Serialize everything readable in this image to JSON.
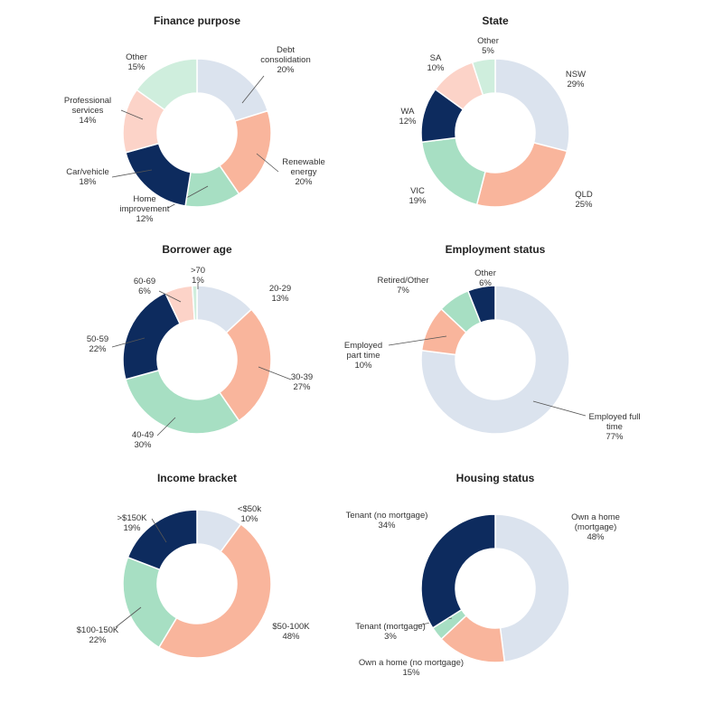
{
  "colors": {
    "light_blue": "#dbe3ee",
    "peach": "#f9b59c",
    "mint": "#a7dfc3",
    "navy": "#0d2b5e",
    "light_peach": "#fcd3c8",
    "light_mint": "#cfeedd"
  },
  "chart_data": [
    {
      "type": "pie",
      "title": "Finance purpose",
      "slices": [
        {
          "name": "Debt consolidation",
          "label_lines": [
            "Debt",
            "consolidation",
            "20%"
          ],
          "value": 20,
          "color": "#dbe3ee"
        },
        {
          "name": "Renewable energy",
          "label_lines": [
            "Renewable",
            "energy",
            "20%"
          ],
          "value": 20,
          "color": "#f9b59c"
        },
        {
          "name": "Home improvement",
          "label_lines": [
            "Home",
            "improvement",
            "12%"
          ],
          "value": 12,
          "color": "#a7dfc3"
        },
        {
          "name": "Car/vehicle",
          "label_lines": [
            "Car/vehicle",
            "18%"
          ],
          "value": 18,
          "color": "#0d2b5e"
        },
        {
          "name": "Professional services",
          "label_lines": [
            "Professional",
            "services",
            "14%"
          ],
          "value": 14,
          "color": "#fcd3c8"
        },
        {
          "name": "Other",
          "label_lines": [
            "Other",
            "15%"
          ],
          "value": 15,
          "color": "#cfeedd"
        }
      ]
    },
    {
      "type": "pie",
      "title": "State",
      "slices": [
        {
          "name": "NSW",
          "label_lines": [
            "NSW",
            "29%"
          ],
          "value": 29,
          "color": "#dbe3ee"
        },
        {
          "name": "QLD",
          "label_lines": [
            "QLD",
            "25%"
          ],
          "value": 25,
          "color": "#f9b59c"
        },
        {
          "name": "VIC",
          "label_lines": [
            "VIC",
            "19%"
          ],
          "value": 19,
          "color": "#a7dfc3"
        },
        {
          "name": "WA",
          "label_lines": [
            "WA",
            "12%"
          ],
          "value": 12,
          "color": "#0d2b5e"
        },
        {
          "name": "SA",
          "label_lines": [
            "SA",
            "10%"
          ],
          "value": 10,
          "color": "#fcd3c8"
        },
        {
          "name": "Other",
          "label_lines": [
            "Other",
            "5%"
          ],
          "value": 5,
          "color": "#cfeedd"
        }
      ]
    },
    {
      "type": "pie",
      "title": "Borrower age",
      "slices": [
        {
          "name": "20-29",
          "label_lines": [
            "20-29",
            "13%"
          ],
          "value": 13,
          "color": "#dbe3ee"
        },
        {
          "name": "30-39",
          "label_lines": [
            "30-39",
            "27%"
          ],
          "value": 27,
          "color": "#f9b59c"
        },
        {
          "name": "40-49",
          "label_lines": [
            "40-49",
            "30%"
          ],
          "value": 30,
          "color": "#a7dfc3"
        },
        {
          "name": "50-59",
          "label_lines": [
            "50-59",
            "22%"
          ],
          "value": 22,
          "color": "#0d2b5e"
        },
        {
          "name": "60-69",
          "label_lines": [
            "60-69",
            "6%"
          ],
          "value": 6,
          "color": "#fcd3c8"
        },
        {
          "name": ">70",
          "label_lines": [
            ">70",
            "1%"
          ],
          "value": 1,
          "color": "#cfeedd"
        }
      ]
    },
    {
      "type": "pie",
      "title": "Employment status",
      "slices": [
        {
          "name": "Employed full time",
          "label_lines": [
            "Employed full",
            "time",
            "77%"
          ],
          "value": 77,
          "color": "#dbe3ee"
        },
        {
          "name": "Employed part time",
          "label_lines": [
            "Employed",
            "part time",
            "10%"
          ],
          "value": 10,
          "color": "#f9b59c"
        },
        {
          "name": "Retired/Other",
          "label_lines": [
            "Retired/Other",
            "7%"
          ],
          "value": 7,
          "color": "#a7dfc3"
        },
        {
          "name": "Other",
          "label_lines": [
            "Other",
            "6%"
          ],
          "value": 6,
          "color": "#0d2b5e"
        }
      ]
    },
    {
      "type": "pie",
      "title": "Income bracket",
      "slices": [
        {
          "name": "<$50k",
          "label_lines": [
            "<$50k",
            "10%"
          ],
          "value": 10,
          "color": "#dbe3ee"
        },
        {
          "name": "$50-100K",
          "label_lines": [
            "$50-100K",
            "48%"
          ],
          "value": 48,
          "color": "#f9b59c"
        },
        {
          "name": "$100-150K",
          "label_lines": [
            "$100-150K",
            "22%"
          ],
          "value": 22,
          "color": "#a7dfc3"
        },
        {
          "name": ">$150K",
          "label_lines": [
            ">$150K",
            "19%"
          ],
          "value": 19,
          "color": "#0d2b5e"
        }
      ]
    },
    {
      "type": "pie",
      "title": "Housing status",
      "slices": [
        {
          "name": "Own a home (mortgage)",
          "label_lines": [
            "Own a home",
            "(mortgage)",
            "48%"
          ],
          "value": 48,
          "color": "#dbe3ee"
        },
        {
          "name": "Own a home (no mortgage)",
          "label_lines": [
            "Own a home (no mortgage)",
            "15%"
          ],
          "value": 15,
          "color": "#f9b59c"
        },
        {
          "name": "Tenant (mortgage)",
          "label_lines": [
            "Tenant (mortgage)",
            "3%"
          ],
          "value": 3,
          "color": "#a7dfc3"
        },
        {
          "name": "Tenant (no mortgage)",
          "label_lines": [
            "Tenant (no mortgage)",
            "34%"
          ],
          "value": 34,
          "color": "#0d2b5e"
        }
      ]
    }
  ]
}
